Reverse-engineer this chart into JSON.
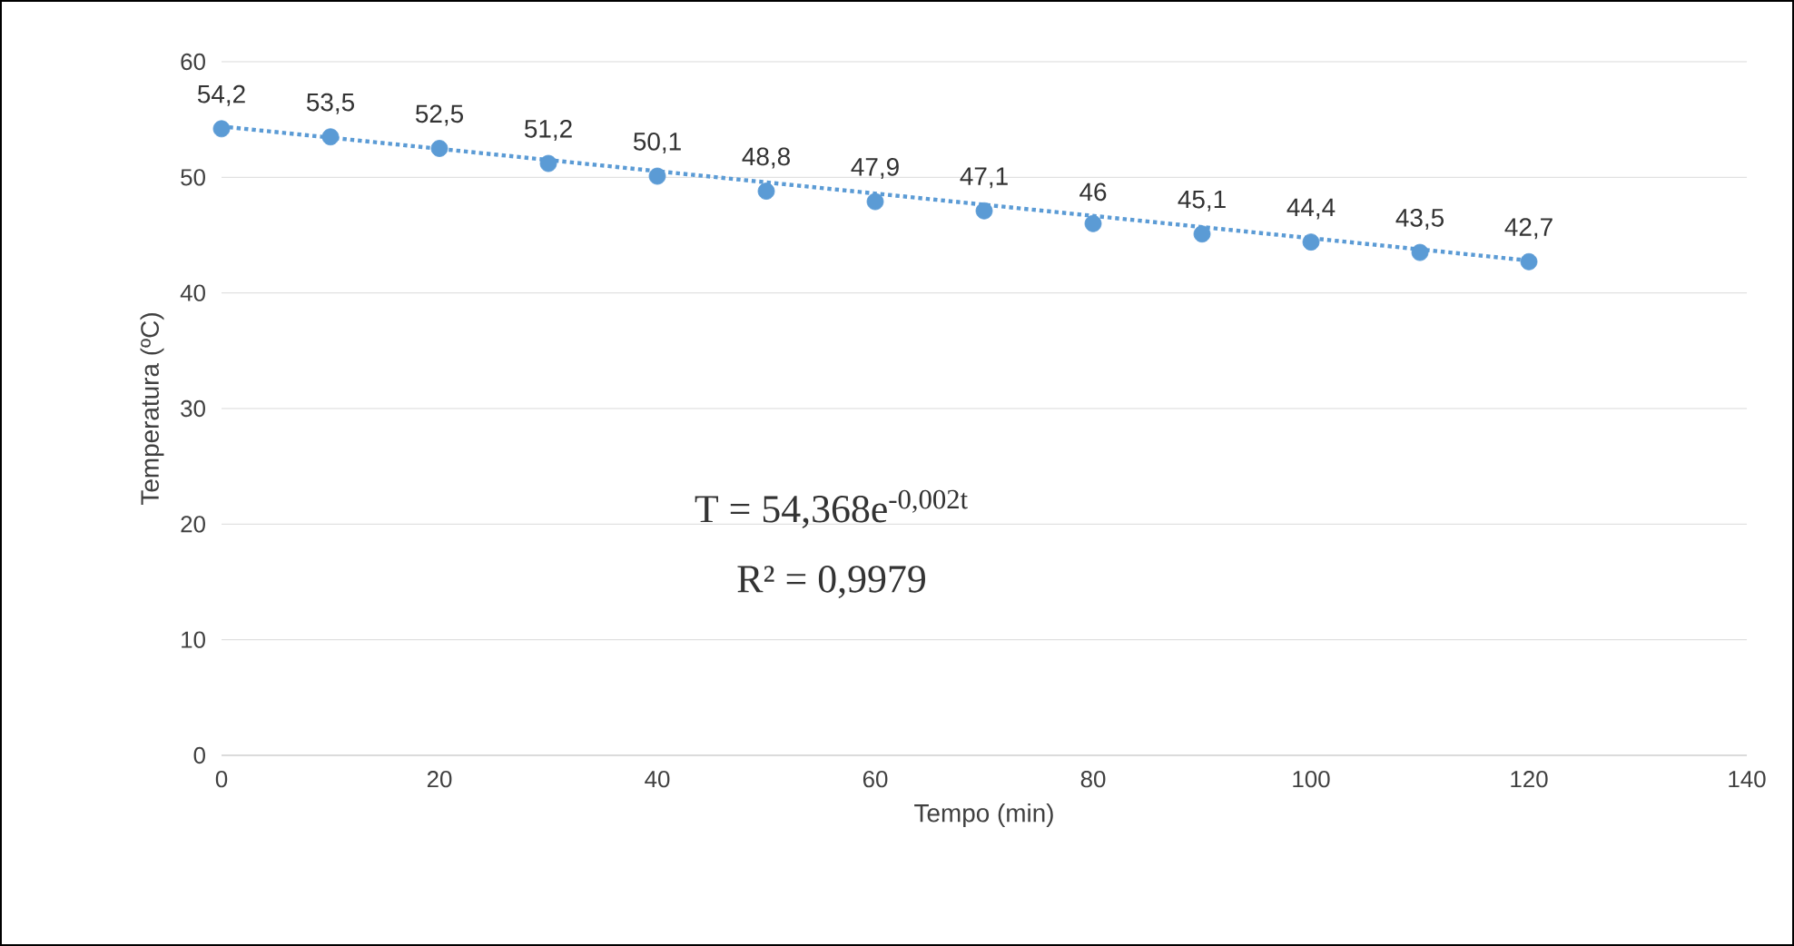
{
  "chart_data": {
    "type": "scatter",
    "xlabel": "Tempo (min)",
    "ylabel": "Temperatura (ºC)",
    "x": [
      0,
      10,
      20,
      30,
      40,
      50,
      60,
      70,
      80,
      90,
      100,
      110,
      120
    ],
    "series": [
      {
        "type": "scatter",
        "color": "#5b9bd5",
        "marker": "circle",
        "values": [
          54.2,
          53.5,
          52.5,
          51.2,
          50.1,
          48.8,
          47.9,
          47.1,
          46,
          45.1,
          44.4,
          43.5,
          42.7
        ],
        "value_labels": [
          "54,2",
          "53,5",
          "52,5",
          "51,2",
          "50,1",
          "48,8",
          "47,9",
          "47,1",
          "46",
          "45,1",
          "44,4",
          "43,5",
          "42,7"
        ]
      },
      {
        "type": "line",
        "color": "#5b9bd5",
        "line_style": "dotted",
        "marker": "none",
        "x": [
          0,
          120
        ],
        "values": [
          54.4,
          42.8
        ]
      }
    ],
    "xlim": [
      0,
      140
    ],
    "ylim": [
      0,
      60
    ],
    "xticks": [
      0,
      20,
      40,
      60,
      80,
      100,
      120,
      140
    ],
    "yticks": [
      0,
      10,
      20,
      30,
      40,
      50,
      60
    ],
    "grid": "y",
    "annotations": [
      "T = 54,368e$^{-0,002t}$",
      "R² = 0,9979"
    ]
  }
}
